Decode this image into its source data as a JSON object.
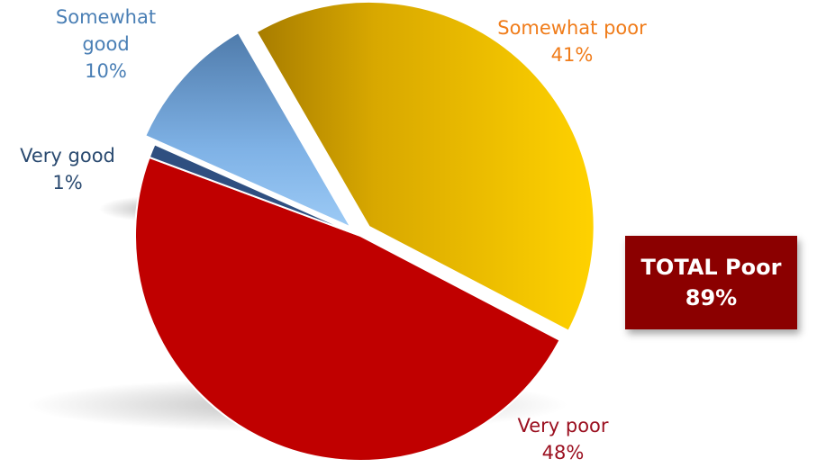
{
  "chart_data": {
    "type": "pie",
    "title": "",
    "slices": [
      {
        "label": "Somewhat poor",
        "value": 41,
        "value_label": "41%",
        "color": "#e8b800",
        "label_color": "#f07c1a"
      },
      {
        "label": "Very poor",
        "value": 48,
        "value_label": "48%",
        "color": "#c00000",
        "label_color": "#9b1020"
      },
      {
        "label": "Very good",
        "value": 1,
        "value_label": "1%",
        "color": "#2f4f80",
        "label_color": "#2a4a70"
      },
      {
        "label": "Somewhat good",
        "value": 10,
        "value_label": "10%",
        "color": "#7aaee0",
        "label_color": "#4a7fb5"
      }
    ],
    "exploded": [
      "Somewhat poor",
      "Somewhat good"
    ],
    "legend": "none",
    "annotation": {
      "title": "TOTAL Poor",
      "value": "89%",
      "color": "#8b0000"
    }
  },
  "labels": {
    "somewhat_good_line1": "Somewhat",
    "somewhat_good_line2": "good",
    "somewhat_good_value": "10%",
    "somewhat_poor_name": "Somewhat poor",
    "somewhat_poor_value": "41%",
    "very_good_name": "Very good",
    "very_good_value": "1%",
    "very_poor_name": "Very poor",
    "very_poor_value": "48%"
  }
}
